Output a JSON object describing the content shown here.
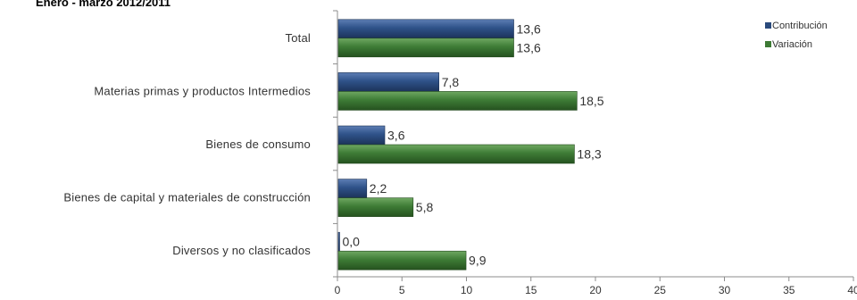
{
  "chart_data": {
    "type": "bar",
    "orientation": "horizontal",
    "title": "Enero - marzo 2012/2011",
    "categories": [
      "Total",
      "Materias primas y productos Intermedios",
      "Bienes de consumo",
      "Bienes de capital y materiales de construcción",
      "Diversos y no clasificados"
    ],
    "series": [
      {
        "name": "Contribución",
        "color": "#2a4a7c",
        "values": [
          13.6,
          7.8,
          3.6,
          2.2,
          0.0
        ]
      },
      {
        "name": "Variación",
        "color": "#3d7a35",
        "values": [
          13.6,
          18.5,
          18.3,
          5.8,
          9.9
        ]
      }
    ],
    "value_labels": [
      [
        "13,6",
        "7,8",
        "3,6",
        "2,2",
        "0,0"
      ],
      [
        "13,6",
        "18,5",
        "18,3",
        "5,8",
        "9,9"
      ]
    ],
    "xlim": [
      0,
      40
    ],
    "xticks": [
      0,
      5,
      10,
      15,
      20,
      25,
      30,
      35,
      40
    ],
    "xtick_labels": [
      "0",
      "5",
      "10",
      "15",
      "20",
      "25",
      "30",
      "35",
      "40"
    ],
    "grid": false,
    "legend_position": "top-right"
  }
}
